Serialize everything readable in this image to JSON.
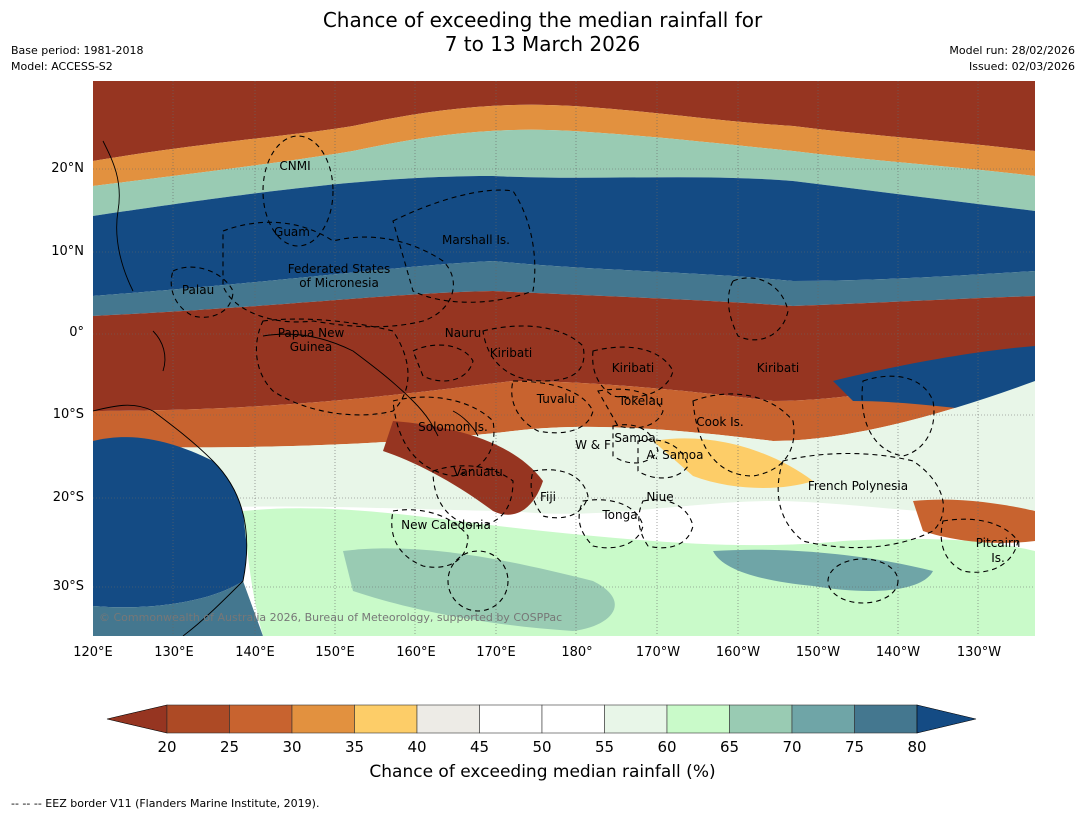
{
  "title_line1": "Chance of exceeding the median rainfall for",
  "title_line2": "7 to 13 March 2026",
  "meta_left": [
    "Base period: 1981-2018",
    "Model: ACCESS-S2"
  ],
  "meta_right": [
    "Model run: 28/02/2026",
    "Issued: 02/03/2026"
  ],
  "copyright": "© Commonwealth of Australia 2026, Bureau of Meteorology, supported by COSPPac",
  "lat_labels": [
    "20°N",
    "10°N",
    "0°",
    "10°S",
    "20°S",
    "30°S"
  ],
  "lon_labels": [
    "120°E",
    "130°E",
    "140°E",
    "150°E",
    "160°E",
    "170°E",
    "180°",
    "170°W",
    "160°W",
    "150°W",
    "140°W",
    "130°W"
  ],
  "regions": [
    "CNMI",
    "Guam",
    "Marshall Is.",
    "Federated States",
    "of Micronesia",
    "Palau",
    "Papua New",
    "Guinea",
    "Nauru",
    "Kiribati",
    "Kiribati",
    "Kiribati",
    "Tuvalu",
    "Tokelau",
    "Solomon Is.",
    "Samoa",
    "W & F",
    "A. Samoa",
    "Cook Is.",
    "Vanuatu",
    "Fiji",
    "Niue",
    "French Polynesia",
    "Tonga",
    "New Caledonia",
    "Pitcairn",
    "Is."
  ],
  "colorbar": {
    "ticks": [
      "20",
      "25",
      "30",
      "35",
      "40",
      "45",
      "50",
      "55",
      "60",
      "65",
      "70",
      "75",
      "80"
    ],
    "colors": [
      "#ad4a25",
      "#c8632f",
      "#e2913f",
      "#fdcd68",
      "#edebe6",
      "#ffffff",
      "#ffffff",
      "#e8f6e8",
      "#c9fac9",
      "#99cbb3",
      "#6fa5a7",
      "#44778f"
    ],
    "low_extend_color": "#963521",
    "high_extend_color": "#144b84",
    "label": "Chance of exceeding median rainfall (%)"
  },
  "footnote": "--  --  -- EEZ border V11 (Flanders Marine Institute, 2019)."
}
